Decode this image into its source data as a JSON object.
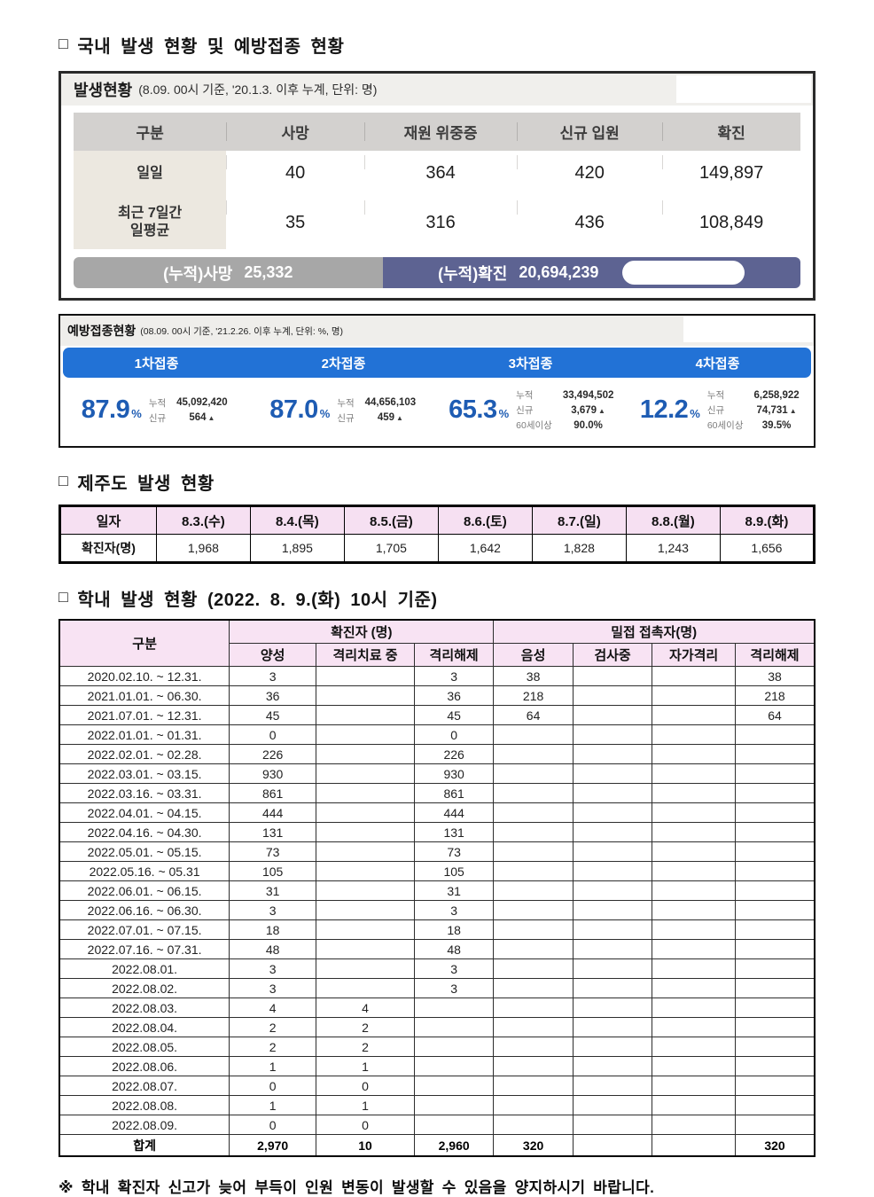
{
  "titles": {
    "bullet": "□",
    "domestic": "국내 발생 현황 및 예방접종 현황",
    "jeju": "제주도 발생 현황",
    "school": "학내 발생 현황 (2022. 8. 9.(화) 10시 기준)"
  },
  "occurrence": {
    "title": "발생현황",
    "subtitle": "(8.09. 00시 기준, '20.1.3. 이후 누계, 단위: 명)",
    "columns": [
      "구분",
      "사망",
      "재원 위중증",
      "신규 입원",
      "확진"
    ],
    "rows": [
      {
        "label": "일일",
        "values": [
          "40",
          "364",
          "420",
          "149,897"
        ]
      },
      {
        "label": "최근 7일간\n일평균",
        "values": [
          "35",
          "316",
          "436",
          "108,849"
        ]
      }
    ],
    "cumulative": {
      "death_label": "(누적)사망",
      "death_value": "25,332",
      "confirmed_label": "(누적)확진",
      "confirmed_value": "20,694,239"
    }
  },
  "vaccination": {
    "title": "예방접종현황",
    "subtitle": "(08.09. 00시 기준, '21.2.26. 이후 누계, 단위: %, 명)",
    "doses": [
      {
        "label": "1차접종",
        "percent": "87.9",
        "unit": "%",
        "stats": [
          {
            "k": "누적",
            "v": "45,092,420",
            "arrow": false
          },
          {
            "k": "신규",
            "v": "564",
            "arrow": true
          }
        ]
      },
      {
        "label": "2차접종",
        "percent": "87.0",
        "unit": "%",
        "stats": [
          {
            "k": "누적",
            "v": "44,656,103",
            "arrow": false
          },
          {
            "k": "신규",
            "v": "459",
            "arrow": true
          }
        ]
      },
      {
        "label": "3차접종",
        "percent": "65.3",
        "unit": "%",
        "stats": [
          {
            "k": "누적",
            "v": "33,494,502",
            "arrow": false
          },
          {
            "k": "신규",
            "v": "3,679",
            "arrow": true
          },
          {
            "k": "60세이상",
            "v": "90.0%",
            "arrow": false
          }
        ]
      },
      {
        "label": "4차접종",
        "percent": "12.2",
        "unit": "%",
        "stats": [
          {
            "k": "누적",
            "v": "6,258,922",
            "arrow": false
          },
          {
            "k": "신규",
            "v": "74,731",
            "arrow": true
          },
          {
            "k": "60세이상",
            "v": "39.5%",
            "arrow": false
          }
        ]
      }
    ]
  },
  "jeju_table": {
    "header": [
      "일자",
      "8.3.(수)",
      "8.4.(목)",
      "8.5.(금)",
      "8.6.(토)",
      "8.7.(일)",
      "8.8.(월)",
      "8.9.(화)"
    ],
    "row": [
      "확진자(명)",
      "1,968",
      "1,895",
      "1,705",
      "1,642",
      "1,828",
      "1,243",
      "1,656"
    ]
  },
  "school_table": {
    "group_headers": {
      "gubun": "구분",
      "confirmed": "확진자 (명)",
      "contact": "밀접 접촉자(명)"
    },
    "sub_columns": [
      "양성",
      "격리치료 중",
      "격리해제",
      "음성",
      "검사중",
      "자가격리",
      "격리해제"
    ],
    "rows": [
      [
        "2020.02.10. ~ 12.31.",
        "3",
        "",
        "3",
        "38",
        "",
        "",
        "38"
      ],
      [
        "2021.01.01. ~ 06.30.",
        "36",
        "",
        "36",
        "218",
        "",
        "",
        "218"
      ],
      [
        "2021.07.01. ~ 12.31.",
        "45",
        "",
        "45",
        "64",
        "",
        "",
        "64"
      ],
      [
        "2022.01.01. ~ 01.31.",
        "0",
        "",
        "0",
        "",
        "",
        "",
        ""
      ],
      [
        "2022.02.01. ~ 02.28.",
        "226",
        "",
        "226",
        "",
        "",
        "",
        ""
      ],
      [
        "2022.03.01. ~ 03.15.",
        "930",
        "",
        "930",
        "",
        "",
        "",
        ""
      ],
      [
        "2022.03.16. ~ 03.31.",
        "861",
        "",
        "861",
        "",
        "",
        "",
        ""
      ],
      [
        "2022.04.01. ~ 04.15.",
        "444",
        "",
        "444",
        "",
        "",
        "",
        ""
      ],
      [
        "2022.04.16. ~ 04.30.",
        "131",
        "",
        "131",
        "",
        "",
        "",
        ""
      ],
      [
        "2022.05.01. ~ 05.15.",
        "73",
        "",
        "73",
        "",
        "",
        "",
        ""
      ],
      [
        "2022.05.16. ~ 05.31",
        "105",
        "",
        "105",
        "",
        "",
        "",
        ""
      ],
      [
        "2022.06.01. ~ 06.15.",
        "31",
        "",
        "31",
        "",
        "",
        "",
        ""
      ],
      [
        "2022.06.16. ~ 06.30.",
        "3",
        "",
        "3",
        "",
        "",
        "",
        ""
      ],
      [
        "2022.07.01. ~ 07.15.",
        "18",
        "",
        "18",
        "",
        "",
        "",
        ""
      ],
      [
        "2022.07.16. ~ 07.31.",
        "48",
        "",
        "48",
        "",
        "",
        "",
        ""
      ],
      [
        "2022.08.01.",
        "3",
        "",
        "3",
        "",
        "",
        "",
        ""
      ],
      [
        "2022.08.02.",
        "3",
        "",
        "3",
        "",
        "",
        "",
        ""
      ],
      [
        "2022.08.03.",
        "4",
        "4",
        "",
        "",
        "",
        "",
        ""
      ],
      [
        "2022.08.04.",
        "2",
        "2",
        "",
        "",
        "",
        "",
        ""
      ],
      [
        "2022.08.05.",
        "2",
        "2",
        "",
        "",
        "",
        "",
        ""
      ],
      [
        "2022.08.06.",
        "1",
        "1",
        "",
        "",
        "",
        "",
        ""
      ],
      [
        "2022.08.07.",
        "0",
        "0",
        "",
        "",
        "",
        "",
        ""
      ],
      [
        "2022.08.08.",
        "1",
        "1",
        "",
        "",
        "",
        "",
        ""
      ],
      [
        "2022.08.09.",
        "0",
        "0",
        "",
        "",
        "",
        "",
        ""
      ]
    ],
    "total_row": [
      "합계",
      "2,970",
      "10",
      "2,960",
      "320",
      "",
      "",
      "320"
    ]
  },
  "footnote": "※ 학내 확진자 신고가 늦어 부득이 인원 변동이 발생할 수 있음을 양지하시기 바랍니다.",
  "colors": {
    "accent_blue": "#2272d6",
    "percent_blue": "#1e5cb3",
    "navy_bar": "#5d6392",
    "gray_bar": "#a7a7a7",
    "pink_header": "#f8e3f3",
    "beige_cell": "#ece8e0"
  }
}
